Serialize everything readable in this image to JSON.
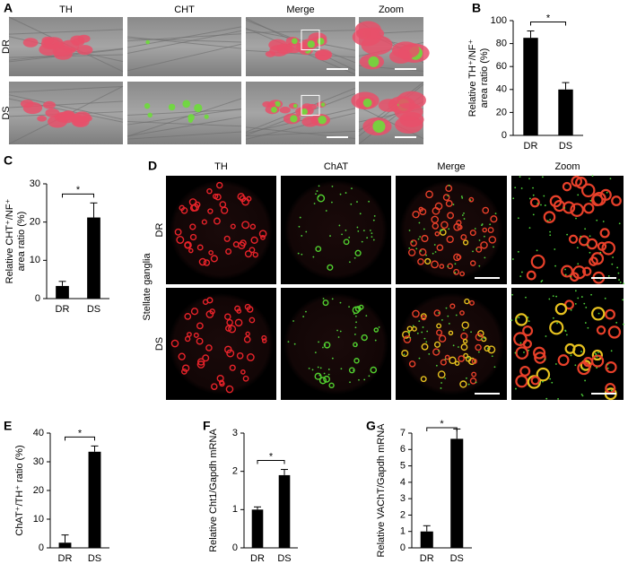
{
  "panel_labels": [
    "A",
    "B",
    "C",
    "D",
    "E",
    "F",
    "G"
  ],
  "panel_a": {
    "columns": [
      "TH",
      "CHT",
      "Merge",
      "Zoom"
    ],
    "rows": [
      "DR",
      "DS"
    ]
  },
  "panel_d": {
    "columns": [
      "TH",
      "ChAT",
      "Merge",
      "Zoom"
    ],
    "rows": [
      "DR",
      "DS"
    ],
    "side_label": "Stellate ganglia"
  },
  "chart_data": [
    {
      "type": "bar",
      "y_label": [
        "Relative TH⁺/NF⁺",
        "area ratio (%)"
      ],
      "categories": [
        "DR",
        "DS"
      ],
      "values": [
        85,
        40
      ],
      "errors": [
        6,
        6
      ],
      "color": "#000000",
      "ylim": [
        0,
        100
      ],
      "yticks": [
        0,
        20,
        40,
        60,
        80,
        100
      ],
      "significance": "*"
    },
    {
      "type": "bar",
      "y_label": [
        "Relative CHT⁺/NF⁺",
        "area ratio (%)"
      ],
      "categories": [
        "DR",
        "DS"
      ],
      "values": [
        3.3,
        21.2
      ],
      "errors": [
        1.2,
        3.8
      ],
      "color": "#000000",
      "ylim": [
        0,
        30
      ],
      "yticks": [
        0,
        10,
        20,
        30
      ],
      "significance": "*"
    },
    {
      "type": "bar",
      "y_label": [
        "ChAT⁺/TH⁺ ratio (%)"
      ],
      "categories": [
        "DR",
        "DS"
      ],
      "values": [
        1.8,
        33.5
      ],
      "errors": [
        2.7,
        2
      ],
      "color": "#000000",
      "ylim": [
        0,
        40
      ],
      "yticks": [
        0,
        10,
        20,
        30,
        40
      ],
      "significance": "*"
    },
    {
      "type": "bar",
      "y_label": [
        "Relative Cht1/Gapdh mRNA"
      ],
      "categories": [
        "DR",
        "DS"
      ],
      "values": [
        1.0,
        1.9
      ],
      "errors": [
        0.07,
        0.15
      ],
      "color": "#000000",
      "ylim": [
        0,
        3
      ],
      "yticks": [
        0,
        1,
        2,
        3
      ],
      "significance": "*"
    },
    {
      "type": "bar",
      "y_label": [
        "Relative VAChT/Gapdh mRNA"
      ],
      "categories": [
        "DR",
        "DS"
      ],
      "values": [
        1.0,
        6.65
      ],
      "errors": [
        0.35,
        0.6
      ],
      "color": "#000000",
      "ylim": [
        0,
        7
      ],
      "yticks": [
        0,
        1,
        2,
        3,
        4,
        5,
        6,
        7
      ],
      "significance": "*"
    }
  ]
}
